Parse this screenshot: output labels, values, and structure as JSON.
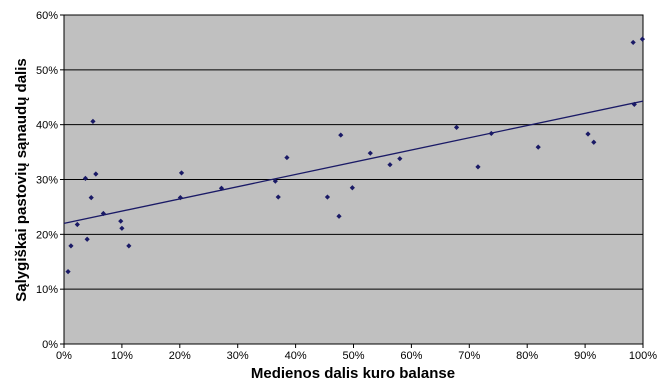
{
  "chart_data": {
    "type": "scatter",
    "xlabel": "Medienos dalis kuro balanse",
    "ylabel": "Sąlygiškai pastovių sąnaudų dalis",
    "xlim": [
      0,
      100
    ],
    "ylim": [
      0,
      60
    ],
    "x_ticks": [
      "0%",
      "10%",
      "20%",
      "30%",
      "40%",
      "50%",
      "60%",
      "70%",
      "80%",
      "90%",
      "100%"
    ],
    "y_ticks": [
      "0%",
      "10%",
      "20%",
      "30%",
      "40%",
      "50%",
      "60%"
    ],
    "grid": "horizontal",
    "plot_background": "#c0c0c0",
    "marker_color": "#1a1a66",
    "trendline_color": "#1a1a66",
    "points": [
      {
        "x": 0.7,
        "y": 13.2
      },
      {
        "x": 1.2,
        "y": 17.9
      },
      {
        "x": 2.3,
        "y": 21.8
      },
      {
        "x": 3.7,
        "y": 30.2
      },
      {
        "x": 4.0,
        "y": 19.1
      },
      {
        "x": 4.7,
        "y": 26.7
      },
      {
        "x": 5.0,
        "y": 40.6
      },
      {
        "x": 5.5,
        "y": 31.0
      },
      {
        "x": 6.8,
        "y": 23.8
      },
      {
        "x": 9.8,
        "y": 22.4
      },
      {
        "x": 10.0,
        "y": 21.1
      },
      {
        "x": 11.2,
        "y": 17.9
      },
      {
        "x": 20.1,
        "y": 26.7
      },
      {
        "x": 20.3,
        "y": 31.2
      },
      {
        "x": 27.2,
        "y": 28.4
      },
      {
        "x": 36.5,
        "y": 29.7
      },
      {
        "x": 37.0,
        "y": 26.8
      },
      {
        "x": 38.5,
        "y": 34.0
      },
      {
        "x": 45.5,
        "y": 26.8
      },
      {
        "x": 47.5,
        "y": 23.3
      },
      {
        "x": 47.8,
        "y": 38.1
      },
      {
        "x": 49.8,
        "y": 28.5
      },
      {
        "x": 52.9,
        "y": 34.8
      },
      {
        "x": 56.3,
        "y": 32.7
      },
      {
        "x": 58.0,
        "y": 33.8
      },
      {
        "x": 67.8,
        "y": 39.5
      },
      {
        "x": 71.5,
        "y": 32.3
      },
      {
        "x": 73.8,
        "y": 38.4
      },
      {
        "x": 81.9,
        "y": 35.9
      },
      {
        "x": 90.5,
        "y": 38.3
      },
      {
        "x": 91.5,
        "y": 36.8
      },
      {
        "x": 98.3,
        "y": 55.0
      },
      {
        "x": 98.5,
        "y": 43.7
      },
      {
        "x": 99.9,
        "y": 55.6
      }
    ],
    "trendline": {
      "x": [
        0,
        100
      ],
      "y": [
        22.0,
        44.3
      ]
    }
  }
}
